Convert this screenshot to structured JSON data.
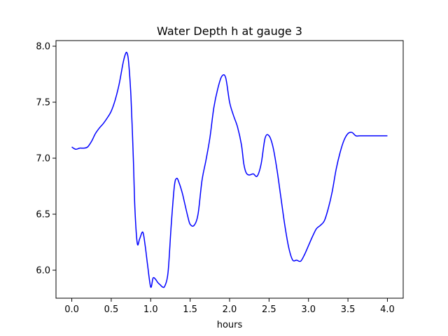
{
  "chart_data": {
    "type": "line",
    "title": "Water Depth h at gauge 3",
    "xlabel": "hours",
    "ylabel": "",
    "xlim": [
      -0.2,
      4.2
    ],
    "ylim": [
      5.75,
      8.05
    ],
    "xticks": [
      0.0,
      0.5,
      1.0,
      1.5,
      2.0,
      2.5,
      3.0,
      3.5,
      4.0
    ],
    "xtick_labels": [
      "0.0",
      "0.5",
      "1.0",
      "1.5",
      "2.0",
      "2.5",
      "3.0",
      "3.5",
      "4.0"
    ],
    "yticks": [
      6.0,
      6.5,
      7.0,
      7.5,
      8.0
    ],
    "ytick_labels": [
      "6.0",
      "6.5",
      "7.0",
      "7.5",
      "8.0"
    ],
    "grid": false,
    "series": [
      {
        "color": "#0000ff",
        "x": [
          0.0,
          0.05,
          0.1,
          0.15,
          0.2,
          0.25,
          0.3,
          0.35,
          0.4,
          0.45,
          0.5,
          0.55,
          0.6,
          0.65,
          0.68,
          0.7,
          0.72,
          0.75,
          0.78,
          0.8,
          0.83,
          0.86,
          0.9,
          0.93,
          0.96,
          1.0,
          1.03,
          1.06,
          1.09,
          1.12,
          1.15,
          1.18,
          1.22,
          1.26,
          1.3,
          1.33,
          1.36,
          1.4,
          1.43,
          1.47,
          1.5,
          1.55,
          1.6,
          1.65,
          1.7,
          1.75,
          1.8,
          1.85,
          1.9,
          1.95,
          2.0,
          2.05,
          2.1,
          2.15,
          2.18,
          2.21,
          2.25,
          2.3,
          2.35,
          2.4,
          2.45,
          2.5,
          2.55,
          2.6,
          2.65,
          2.7,
          2.75,
          2.8,
          2.85,
          2.9,
          2.95,
          3.0,
          3.05,
          3.1,
          3.15,
          3.2,
          3.25,
          3.3,
          3.35,
          3.4,
          3.45,
          3.5,
          3.55,
          3.6,
          3.65,
          3.7,
          3.75,
          3.8,
          3.85,
          3.9,
          3.95,
          4.0
        ],
        "y": [
          7.1,
          7.08,
          7.09,
          7.09,
          7.1,
          7.15,
          7.22,
          7.27,
          7.31,
          7.36,
          7.42,
          7.52,
          7.66,
          7.85,
          7.93,
          7.94,
          7.86,
          7.55,
          7.0,
          6.55,
          6.24,
          6.28,
          6.34,
          6.22,
          6.05,
          5.85,
          5.93,
          5.92,
          5.89,
          5.87,
          5.85,
          5.86,
          5.98,
          6.4,
          6.75,
          6.82,
          6.78,
          6.69,
          6.6,
          6.48,
          6.41,
          6.4,
          6.5,
          6.8,
          6.98,
          7.18,
          7.45,
          7.62,
          7.73,
          7.72,
          7.5,
          7.38,
          7.28,
          7.12,
          6.95,
          6.87,
          6.85,
          6.86,
          6.84,
          6.95,
          7.18,
          7.2,
          7.1,
          6.9,
          6.65,
          6.4,
          6.2,
          6.09,
          6.09,
          6.08,
          6.14,
          6.22,
          6.3,
          6.37,
          6.4,
          6.44,
          6.55,
          6.7,
          6.9,
          7.05,
          7.16,
          7.22,
          7.23,
          7.2,
          7.2,
          7.2,
          7.2,
          7.2,
          7.2,
          7.2,
          7.2,
          7.2
        ]
      }
    ]
  }
}
